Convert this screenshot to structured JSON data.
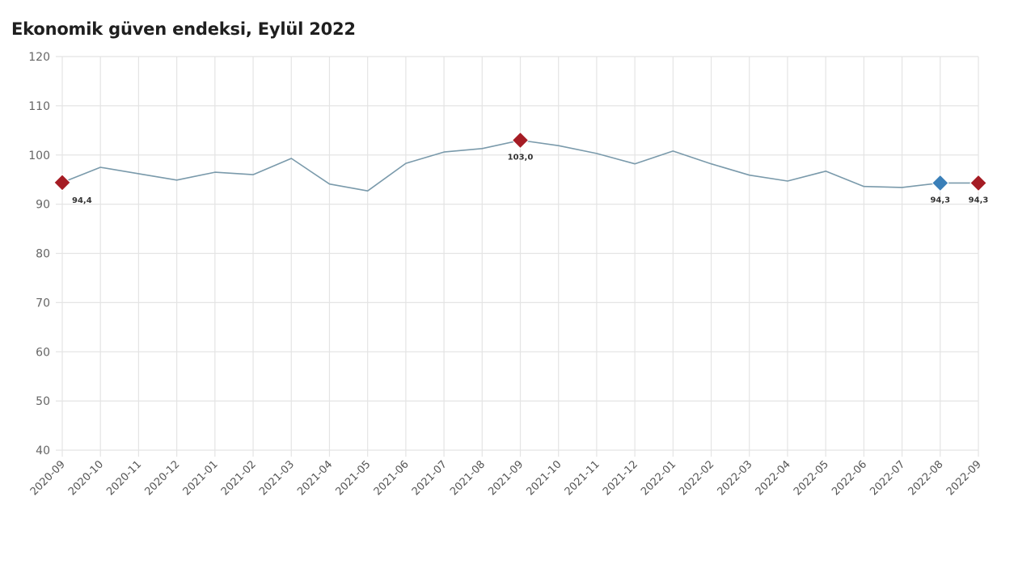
{
  "chart_data": {
    "type": "line",
    "title": "Ekonomik güven endeksi, Eylül 2022",
    "xlabel": "",
    "ylabel": "",
    "ylim": [
      40,
      120
    ],
    "yticks": [
      40,
      50,
      60,
      70,
      80,
      90,
      100,
      110,
      120
    ],
    "grid": true,
    "legend": null,
    "categories": [
      "2020-09",
      "2020-10",
      "2020-11",
      "2020-12",
      "2021-01",
      "2021-02",
      "2021-03",
      "2021-04",
      "2021-05",
      "2021-06",
      "2021-07",
      "2021-08",
      "2021-09",
      "2021-10",
      "2021-11",
      "2021-12",
      "2022-01",
      "2022-02",
      "2022-03",
      "2022-04",
      "2022-05",
      "2022-06",
      "2022-07",
      "2022-08",
      "2022-09"
    ],
    "series": [
      {
        "name": "Ekonomik güven endeksi",
        "color": "#7a9aab",
        "values": [
          94.4,
          97.5,
          96.2,
          94.9,
          96.5,
          96.0,
          99.3,
          94.1,
          92.7,
          98.3,
          100.6,
          101.3,
          103.0,
          101.9,
          100.3,
          98.2,
          100.8,
          98.2,
          95.9,
          94.7,
          96.7,
          93.6,
          93.4,
          94.3,
          94.3
        ]
      }
    ],
    "annotations": [
      {
        "index": 0,
        "label": "94,4",
        "marker_color": "#a51c24",
        "label_position": "below-right"
      },
      {
        "index": 12,
        "label": "103,0",
        "marker_color": "#a51c24",
        "label_position": "below"
      },
      {
        "index": 23,
        "label": "94,3",
        "marker_color": "#3a7fb8",
        "label_position": "below"
      },
      {
        "index": 24,
        "label": "94,3",
        "marker_color": "#a51c24",
        "label_position": "below"
      }
    ]
  },
  "colors": {
    "line": "#7a9aab",
    "highlight_red": "#a51c24",
    "highlight_blue": "#3a7fb8",
    "grid": "#e4e4e4",
    "tick_text": "#666666"
  }
}
